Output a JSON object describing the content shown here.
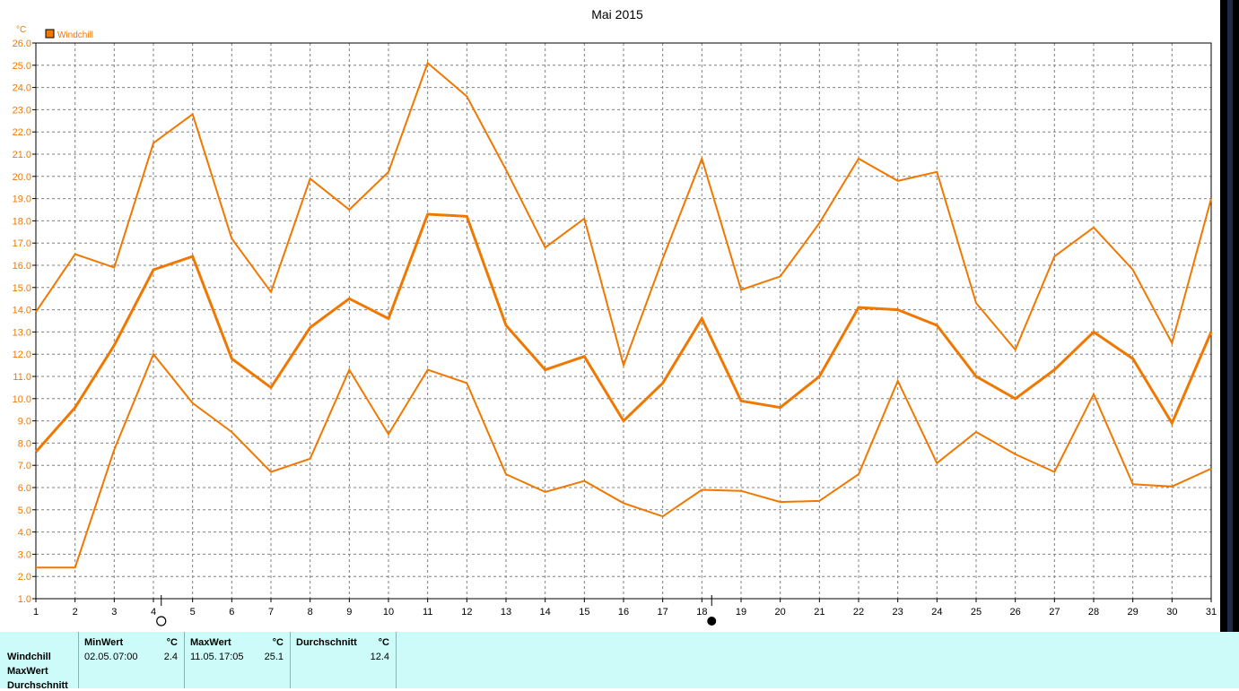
{
  "chart_data": {
    "type": "line",
    "title": "Mai 2015",
    "ylabel": "°C",
    "legend": {
      "label": "Windchill",
      "color": "#f07800",
      "placement": "top-left"
    },
    "ylim": [
      1.0,
      26.0
    ],
    "yticks": [
      "1.0",
      "2.0",
      "3.0",
      "4.0",
      "5.0",
      "6.0",
      "7.0",
      "8.0",
      "9.0",
      "10.0",
      "11.0",
      "12.0",
      "13.0",
      "14.0",
      "15.0",
      "16.0",
      "17.0",
      "18.0",
      "19.0",
      "20.0",
      "21.0",
      "22.0",
      "23.0",
      "24.0",
      "25.0",
      "26.0"
    ],
    "x": [
      1,
      2,
      3,
      4,
      5,
      6,
      7,
      8,
      9,
      10,
      11,
      12,
      13,
      14,
      15,
      16,
      17,
      18,
      19,
      20,
      21,
      22,
      23,
      24,
      25,
      26,
      27,
      28,
      29,
      30,
      31
    ],
    "xticks": [
      "1",
      "2",
      "3",
      "4",
      "5",
      "6",
      "7",
      "8",
      "9",
      "10",
      "11",
      "12",
      "13",
      "14",
      "15",
      "16",
      "17",
      "18",
      "19",
      "20",
      "21",
      "22",
      "23",
      "24",
      "25",
      "26",
      "27",
      "28",
      "29",
      "30",
      "31"
    ],
    "grid": true,
    "series": [
      {
        "name": "MaxWert",
        "color": "#f07800",
        "values": [
          13.9,
          16.5,
          15.9,
          21.5,
          22.8,
          17.2,
          14.8,
          19.9,
          18.5,
          20.2,
          25.1,
          23.6,
          20.3,
          16.8,
          18.1,
          11.5,
          16.3,
          20.8,
          14.9,
          15.5,
          17.9,
          20.8,
          19.8,
          20.2,
          14.3,
          12.2,
          16.4,
          17.7,
          15.8,
          12.5,
          19.0
        ]
      },
      {
        "name": "Durchschnitt",
        "color": "#f07800",
        "values": [
          7.6,
          9.6,
          12.4,
          15.8,
          16.4,
          11.8,
          10.5,
          13.2,
          14.5,
          13.6,
          18.3,
          18.2,
          13.3,
          11.3,
          11.9,
          9.0,
          10.7,
          13.6,
          9.9,
          9.6,
          11.0,
          14.1,
          14.0,
          13.3,
          11.0,
          10.0,
          11.3,
          13.0,
          11.8,
          8.9,
          13.0
        ]
      },
      {
        "name": "MinWert",
        "color": "#f07800",
        "values": [
          2.4,
          2.4,
          7.7,
          12.0,
          9.8,
          8.5,
          6.7,
          7.3,
          11.3,
          8.4,
          11.3,
          10.7,
          6.6,
          5.8,
          6.3,
          5.3,
          4.7,
          5.9,
          5.85,
          5.35,
          5.4,
          6.6,
          10.8,
          7.1,
          8.5,
          7.5,
          6.7,
          10.2,
          6.15,
          6.05,
          6.85
        ]
      }
    ],
    "moon_phases": [
      {
        "day": 4.2,
        "phase": "full"
      },
      {
        "day": 18.25,
        "phase": "new"
      }
    ]
  },
  "summary": {
    "rows": [
      "Windchill",
      "MaxWert",
      "Durchschnitt"
    ],
    "min": {
      "header": "MinWert",
      "unit": "°C",
      "date": "02.05.",
      "time": "07:00",
      "value": "2.4"
    },
    "max": {
      "header": "MaxWert",
      "unit": "°C",
      "date": "11.05.",
      "time": "17:05",
      "value": "25.1"
    },
    "avg": {
      "header": "Durchschnitt",
      "unit": "°C",
      "value": "12.4"
    }
  }
}
